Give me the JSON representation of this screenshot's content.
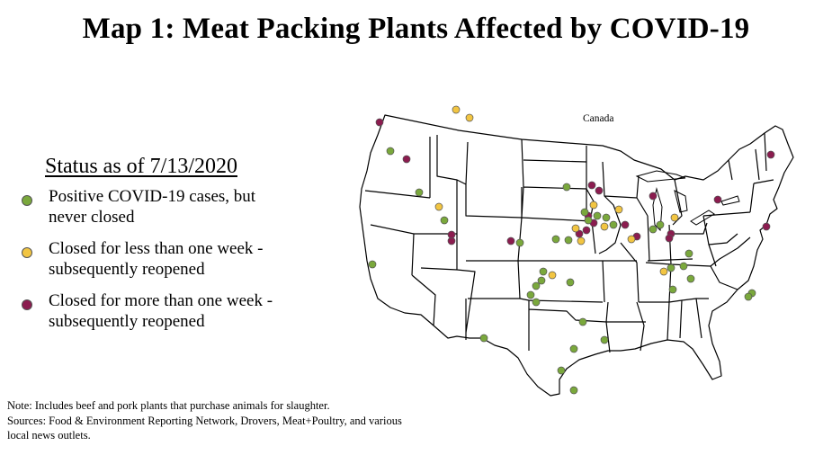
{
  "title": "Map 1: Meat Packing Plants Affected by COVID-19",
  "legend": {
    "heading": "Status as of 7/13/2020",
    "items": [
      {
        "label_line1": "Positive COVID-19 cases, but",
        "label_line2": "never closed",
        "color": "#7aa83c"
      },
      {
        "label_line1": "Closed for less than one week -",
        "label_line2": "subsequently reopened",
        "color": "#f2c542"
      },
      {
        "label_line1": "Closed for more than one week -",
        "label_line2": "subsequently reopened",
        "color": "#8b1c4f"
      }
    ]
  },
  "map": {
    "country_label": "Canada",
    "colors": {
      "green": "#7aa83c",
      "yellow": "#f2c542",
      "maroon": "#8b1c4f",
      "outline": "#000000"
    }
  },
  "note": {
    "line1": "Note: Includes beef and pork plants that purchase animals for slaughter.",
    "line2": "Sources: Food & Environment Reporting Network, Drovers, Meat+Poultry, and various",
    "line3": "local news outlets."
  }
}
